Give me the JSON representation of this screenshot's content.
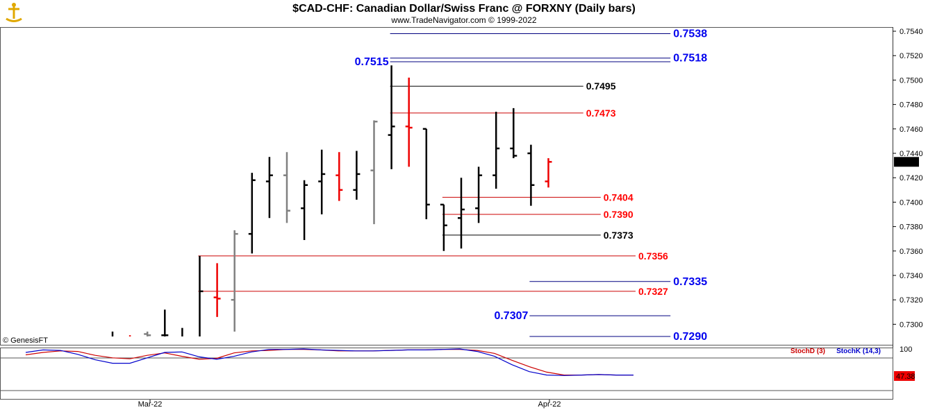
{
  "chart_data": {
    "type": "ohlc",
    "title": "$CAD-CHF:  Canadian Dollar/Swiss Franc @ FORXNY  (Daily bars)",
    "subtitle": "www.TradeNavigator.com © 1999-2022",
    "copyright": "© GenesisFT",
    "x_tick_labels": [
      {
        "label": "Mar-22",
        "bar_index": 2
      },
      {
        "label": "Apr-22",
        "bar_index": 25
      }
    ],
    "y_axis": {
      "ylim": [
        0.729,
        0.7546
      ],
      "ticks": [
        "0.7540",
        "0.7520",
        "0.7500",
        "0.7480",
        "0.7460",
        "0.7440",
        "0.7420",
        "0.7400",
        "0.7380",
        "0.7360",
        "0.7340",
        "0.7320",
        "0.7300"
      ],
      "last_price": "0.7433",
      "last_price_value": 0.7433
    },
    "bars": [
      {
        "o": null,
        "h": 0.7294,
        "l": 0.729,
        "c": null,
        "color": "black"
      },
      {
        "o": null,
        "h": 0.7291,
        "l": 0.729,
        "c": null,
        "color": "red"
      },
      {
        "o": 0.7292,
        "h": 0.7294,
        "l": 0.729,
        "c": 0.7291,
        "color": "gray"
      },
      {
        "o": 0.7291,
        "h": 0.7312,
        "l": 0.729,
        "c": 0.7291,
        "color": "black"
      },
      {
        "o": null,
        "h": 0.7297,
        "l": 0.729,
        "c": null,
        "color": "black"
      },
      {
        "o": null,
        "h": 0.7356,
        "l": 0.729,
        "c": 0.7327,
        "color": "black"
      },
      {
        "o": 0.7322,
        "h": 0.735,
        "l": 0.7306,
        "c": 0.7321,
        "color": "red"
      },
      {
        "o": 0.732,
        "h": 0.7377,
        "l": 0.7294,
        "c": 0.7374,
        "color": "gray"
      },
      {
        "o": 0.7374,
        "h": 0.7424,
        "l": 0.7358,
        "c": 0.7418,
        "color": "black"
      },
      {
        "o": 0.7417,
        "h": 0.7437,
        "l": 0.7387,
        "c": 0.7422,
        "color": "black"
      },
      {
        "o": 0.7422,
        "h": 0.7441,
        "l": 0.7383,
        "c": 0.7393,
        "color": "gray"
      },
      {
        "o": 0.7395,
        "h": 0.7418,
        "l": 0.7369,
        "c": 0.7414,
        "color": "black"
      },
      {
        "o": 0.7417,
        "h": 0.7443,
        "l": 0.739,
        "c": 0.7423,
        "color": "black"
      },
      {
        "o": 0.7422,
        "h": 0.7441,
        "l": 0.7401,
        "c": 0.741,
        "color": "red"
      },
      {
        "o": 0.741,
        "h": 0.7442,
        "l": 0.7402,
        "c": 0.7423,
        "color": "black"
      },
      {
        "o": 0.7426,
        "h": 0.7467,
        "l": 0.7382,
        "c": 0.7466,
        "color": "gray"
      },
      {
        "o": 0.7455,
        "h": 0.7512,
        "l": 0.7427,
        "c": 0.7462,
        "color": "black"
      },
      {
        "o": 0.7462,
        "h": 0.7502,
        "l": 0.7429,
        "c": 0.7461,
        "color": "red"
      },
      {
        "o": 0.746,
        "h": 0.746,
        "l": 0.7386,
        "c": 0.7398,
        "color": "black"
      },
      {
        "o": 0.7398,
        "h": 0.7398,
        "l": 0.736,
        "c": 0.7381,
        "color": "black"
      },
      {
        "o": 0.7387,
        "h": 0.742,
        "l": 0.7362,
        "c": 0.7394,
        "color": "black"
      },
      {
        "o": 0.7395,
        "h": 0.7429,
        "l": 0.7383,
        "c": 0.7422,
        "color": "black"
      },
      {
        "o": 0.7422,
        "h": 0.7474,
        "l": 0.7411,
        "c": 0.7444,
        "color": "black"
      },
      {
        "o": 0.7444,
        "h": 0.7477,
        "l": 0.7436,
        "c": 0.7438,
        "color": "black"
      },
      {
        "o": 0.744,
        "h": 0.7447,
        "l": 0.7397,
        "c": 0.7414,
        "color": "black"
      },
      {
        "o": 0.7417,
        "h": 0.7436,
        "l": 0.7412,
        "c": 0.7433,
        "color": "red"
      }
    ],
    "levels": [
      {
        "value": 0.7538,
        "label": "0.7538",
        "color": "#0000ee",
        "line_color": "#000080",
        "from_bar": 16,
        "to_bar": 32,
        "label_pos": "right"
      },
      {
        "value": 0.7518,
        "label": "0.7518",
        "color": "#0000ee",
        "line_color": "#000080",
        "from_bar": 16,
        "to_bar": 32,
        "label_pos": "right"
      },
      {
        "value": 0.7515,
        "label": "0.7515",
        "color": "#0000ee",
        "line_color": "#000080",
        "from_bar": 16,
        "to_bar": 32,
        "label_pos": "left"
      },
      {
        "value": 0.7495,
        "label": "0.7495",
        "color": "#000000",
        "line_color": "#000000",
        "from_bar": 16,
        "to_bar": 27,
        "label_pos": "right"
      },
      {
        "value": 0.7473,
        "label": "0.7473",
        "color": "#ff0000",
        "line_color": "#cc0000",
        "from_bar": 16,
        "to_bar": 27,
        "label_pos": "right"
      },
      {
        "value": 0.7404,
        "label": "0.7404",
        "color": "#ff0000",
        "line_color": "#cc0000",
        "from_bar": 19,
        "to_bar": 28,
        "label_pos": "right"
      },
      {
        "value": 0.739,
        "label": "0.7390",
        "color": "#ff0000",
        "line_color": "#cc0000",
        "from_bar": 19,
        "to_bar": 28,
        "label_pos": "right"
      },
      {
        "value": 0.7373,
        "label": "0.7373",
        "color": "#000000",
        "line_color": "#000000",
        "from_bar": 19,
        "to_bar": 28,
        "label_pos": "right"
      },
      {
        "value": 0.7356,
        "label": "0.7356",
        "color": "#ff0000",
        "line_color": "#cc0000",
        "from_bar": 5,
        "to_bar": 30,
        "label_pos": "right"
      },
      {
        "value": 0.7335,
        "label": "0.7335",
        "color": "#0000ee",
        "line_color": "#000080",
        "from_bar": 24,
        "to_bar": 32,
        "label_pos": "right"
      },
      {
        "value": 0.7327,
        "label": "0.7327",
        "color": "#ff0000",
        "line_color": "#cc0000",
        "from_bar": 5,
        "to_bar": 30,
        "label_pos": "right"
      },
      {
        "value": 0.7307,
        "label": "0.7307",
        "color": "#0000ee",
        "line_color": "#000080",
        "from_bar": 24,
        "to_bar": 32,
        "label_pos": "left"
      },
      {
        "value": 0.729,
        "label": "0.7290",
        "color": "#0000ee",
        "line_color": "#000080",
        "from_bar": 24,
        "to_bar": 32,
        "label_pos": "right"
      }
    ],
    "stochastic": {
      "label_d": "StochD (3)",
      "label_k": "StochK (14,3)",
      "ylim": [
        0,
        100
      ],
      "ticks": [
        "100"
      ],
      "last_value": "47.38",
      "stoch_d": [
        88,
        93,
        96,
        95,
        87,
        82,
        80,
        87,
        92,
        85,
        79,
        81,
        92,
        96,
        97,
        99,
        99,
        98,
        96,
        96,
        96,
        97,
        98,
        98,
        99,
        99,
        97,
        91,
        77,
        64,
        53,
        47,
        47,
        48,
        47,
        47
      ],
      "stoch_k": [
        93,
        98,
        97,
        89,
        78,
        71,
        71,
        82,
        93,
        94,
        84,
        79,
        85,
        94,
        99,
        99,
        100,
        98,
        97,
        96,
        96,
        97,
        98,
        98,
        99,
        100,
        95,
        85,
        68,
        54,
        47,
        46,
        47,
        48,
        47,
        47
      ]
    }
  }
}
